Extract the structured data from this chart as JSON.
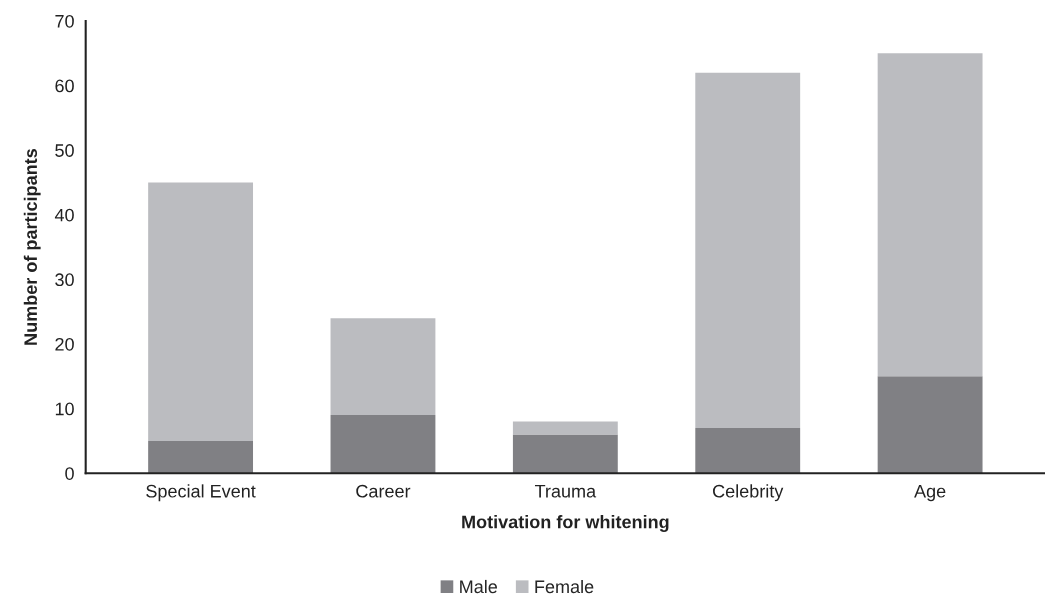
{
  "chart_data": {
    "type": "bar",
    "stacked": true,
    "xlabel": "Motivation for whitening",
    "ylabel": "Number of participants",
    "categories": [
      "Special Event",
      "Career",
      "Trauma",
      "Celebrity",
      "Age"
    ],
    "series": [
      {
        "name": "Male",
        "color": "#808084",
        "values": [
          5,
          9,
          6,
          7,
          15
        ]
      },
      {
        "name": "Female",
        "color": "#bbbcc0",
        "values": [
          40,
          15,
          2,
          55,
          50
        ]
      }
    ],
    "ylim": [
      0,
      70
    ],
    "yticks": [
      0,
      10,
      20,
      30,
      40,
      50,
      60,
      70
    ],
    "grid": false,
    "legend": "bottom"
  }
}
